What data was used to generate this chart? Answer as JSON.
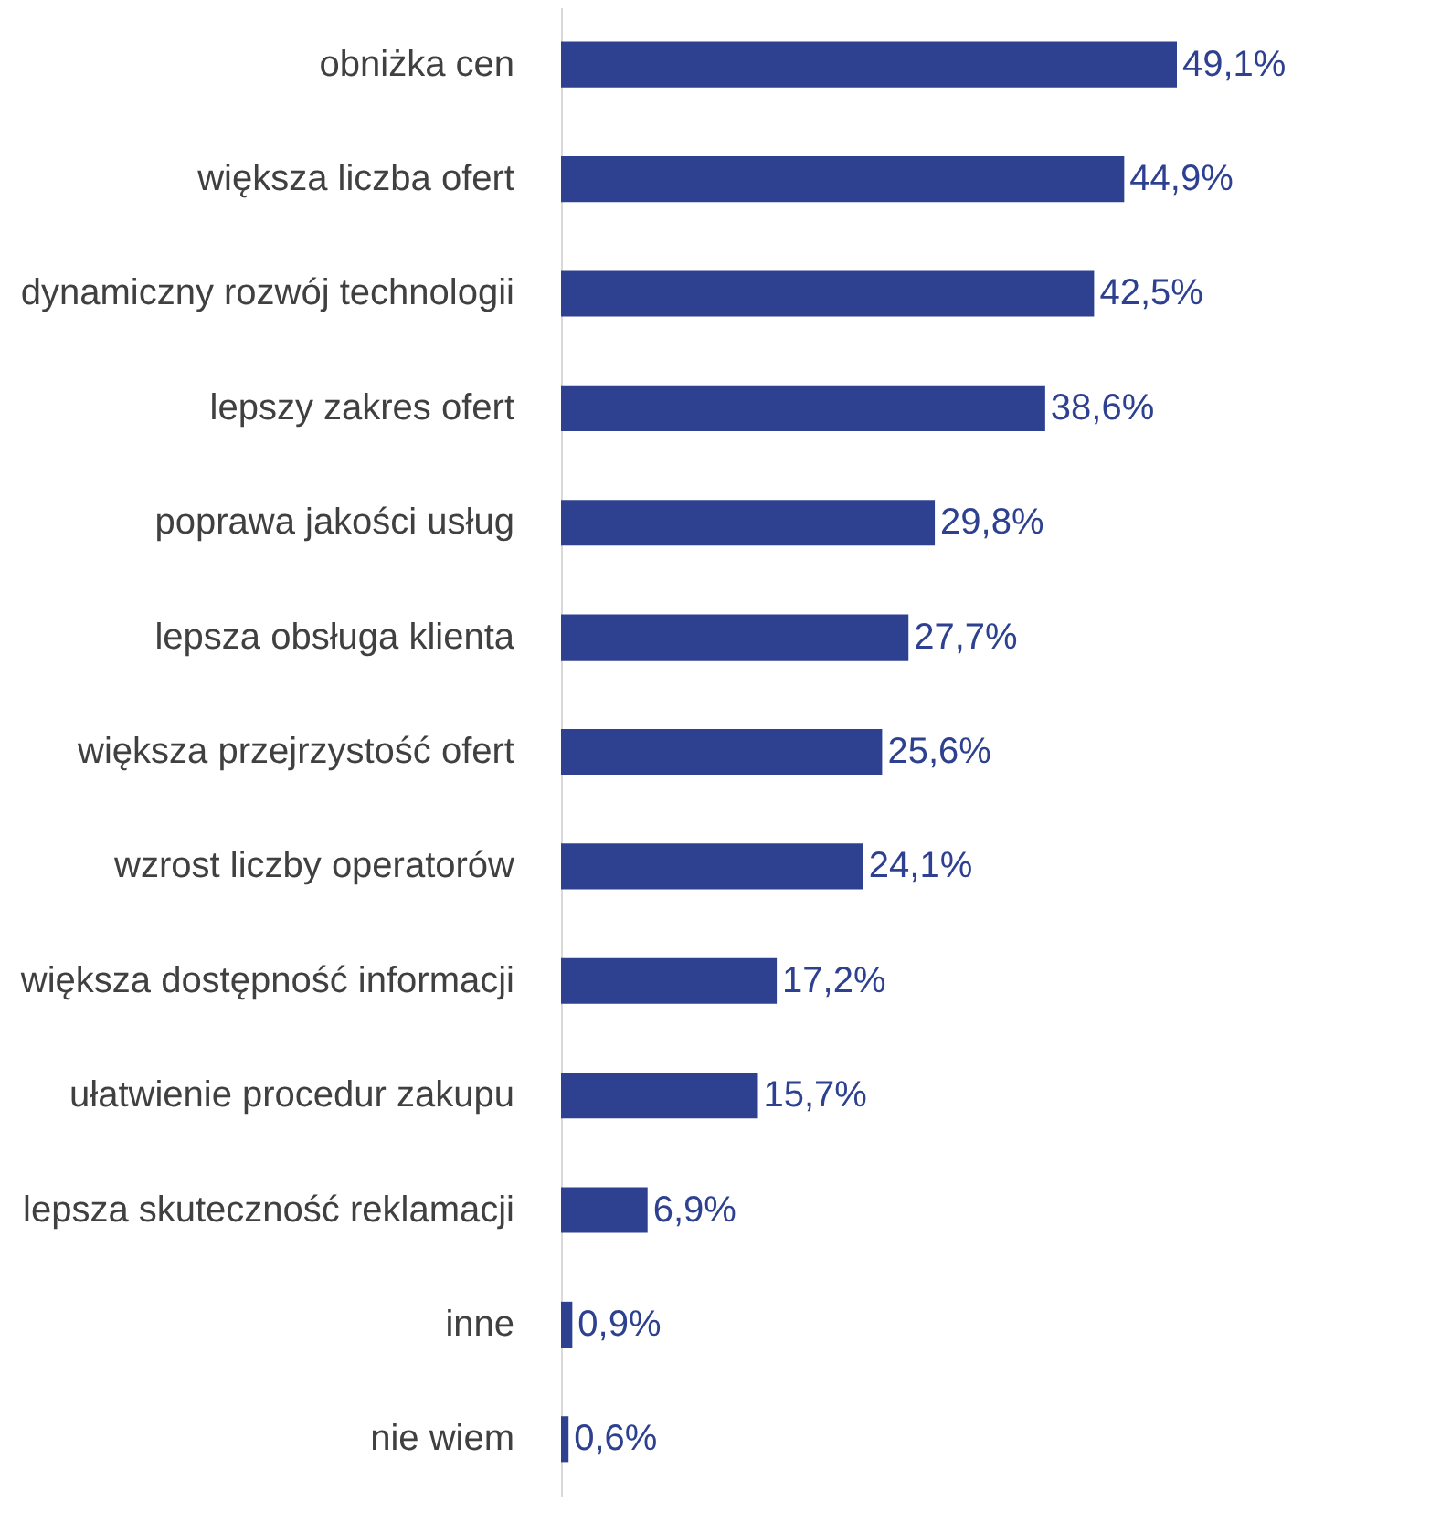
{
  "chart_data": {
    "type": "bar",
    "orientation": "horizontal",
    "categories": [
      "obniżka cen",
      "większa liczba ofert",
      "dynamiczny rozwój technologii",
      "lepszy zakres ofert",
      "poprawa jakości usług",
      "lepsza obsługa klienta",
      "większa przejrzystość ofert",
      "wzrost liczby operatorów",
      "większa dostępność informacji",
      "ułatwienie procedur zakupu",
      "lepsza skuteczność reklamacji",
      "inne",
      "nie wiem"
    ],
    "values": [
      49.1,
      44.9,
      42.5,
      38.6,
      29.8,
      27.7,
      25.6,
      24.1,
      17.2,
      15.7,
      6.9,
      0.9,
      0.6
    ],
    "value_labels": [
      "49,1%",
      "44,9%",
      "42,5%",
      "38,6%",
      "29,8%",
      "27,7%",
      "25,6%",
      "24,1%",
      "17,2%",
      "15,7%",
      "6,9%",
      "0,9%",
      "0,6%"
    ],
    "color": "#2e4190",
    "grid": false
  }
}
